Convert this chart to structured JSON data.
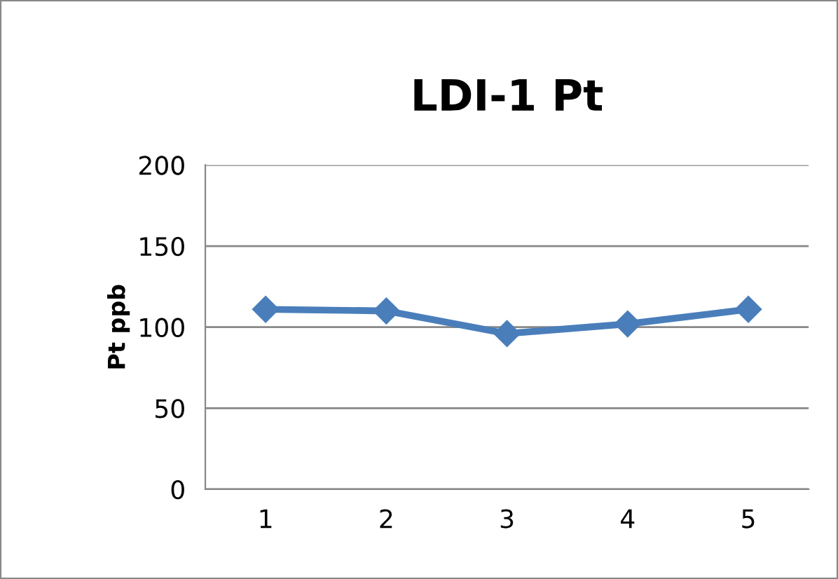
{
  "chart_data": {
    "type": "line",
    "title": "LDI-1 Pt",
    "ylabel": "Pt ppb",
    "categories": [
      "1",
      "2",
      "3",
      "4",
      "5"
    ],
    "series": [
      {
        "color": "#4a7ebb",
        "values": [
          111,
          110,
          96,
          102,
          111
        ]
      }
    ],
    "ylim": [
      0,
      200
    ],
    "yticks": [
      0,
      50,
      100,
      150,
      200
    ],
    "grid": "y",
    "legend": false,
    "marker": "diamond",
    "line_style": "solid"
  }
}
